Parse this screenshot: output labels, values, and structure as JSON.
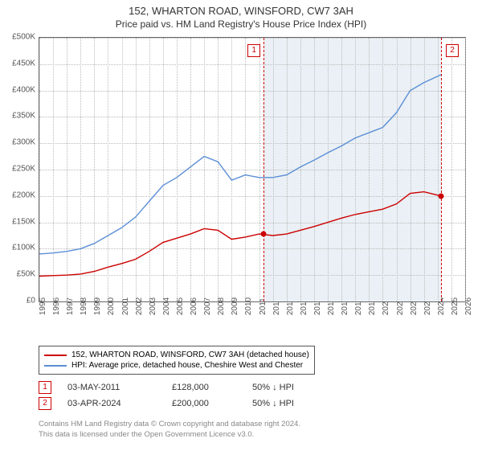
{
  "title": "152, WHARTON ROAD, WINSFORD, CW7 3AH",
  "subtitle": "Price paid vs. HM Land Registry's House Price Index (HPI)",
  "chart": {
    "type": "line",
    "background_color": "#ffffff",
    "grid_color": "#bbbbbb",
    "border_color": "#666666",
    "shade_color": "#eaf0f5",
    "xlim": [
      1995,
      2026
    ],
    "ylim": [
      0,
      500000
    ],
    "ytick_step": 50000,
    "y_ticks": [
      "£0",
      "£50K",
      "£100K",
      "£150K",
      "£200K",
      "£250K",
      "£300K",
      "£350K",
      "£400K",
      "£450K",
      "£500K"
    ],
    "x_ticks": [
      1995,
      1996,
      1997,
      1998,
      1999,
      2000,
      2001,
      2002,
      2003,
      2004,
      2005,
      2006,
      2007,
      2008,
      2009,
      2010,
      2011,
      2012,
      2013,
      2014,
      2015,
      2016,
      2017,
      2018,
      2019,
      2020,
      2021,
      2022,
      2023,
      2024,
      2025,
      2026
    ],
    "shade_start": 2011.33,
    "shade_end": 2024.25,
    "label_fontsize": 10,
    "title_fontsize": 13,
    "line_width": 1.4,
    "series": {
      "property": {
        "color": "#cc0000",
        "data": [
          [
            1995,
            48000
          ],
          [
            1996,
            49000
          ],
          [
            1997,
            50000
          ],
          [
            1998,
            52000
          ],
          [
            1999,
            57000
          ],
          [
            2000,
            65000
          ],
          [
            2001,
            72000
          ],
          [
            2002,
            80000
          ],
          [
            2003,
            95000
          ],
          [
            2004,
            112000
          ],
          [
            2005,
            120000
          ],
          [
            2006,
            128000
          ],
          [
            2007,
            138000
          ],
          [
            2008,
            135000
          ],
          [
            2009,
            118000
          ],
          [
            2010,
            122000
          ],
          [
            2011,
            128000
          ],
          [
            2012,
            125000
          ],
          [
            2013,
            128000
          ],
          [
            2014,
            135000
          ],
          [
            2015,
            142000
          ],
          [
            2016,
            150000
          ],
          [
            2017,
            158000
          ],
          [
            2018,
            165000
          ],
          [
            2019,
            170000
          ],
          [
            2020,
            175000
          ],
          [
            2021,
            185000
          ],
          [
            2022,
            205000
          ],
          [
            2023,
            208000
          ],
          [
            2024.25,
            200000
          ]
        ]
      },
      "hpi": {
        "color": "#5b8fd6",
        "data": [
          [
            1995,
            90000
          ],
          [
            1996,
            92000
          ],
          [
            1997,
            95000
          ],
          [
            1998,
            100000
          ],
          [
            1999,
            110000
          ],
          [
            2000,
            125000
          ],
          [
            2001,
            140000
          ],
          [
            2002,
            160000
          ],
          [
            2003,
            190000
          ],
          [
            2004,
            220000
          ],
          [
            2005,
            235000
          ],
          [
            2006,
            255000
          ],
          [
            2007,
            275000
          ],
          [
            2008,
            265000
          ],
          [
            2009,
            230000
          ],
          [
            2010,
            240000
          ],
          [
            2011,
            235000
          ],
          [
            2012,
            235000
          ],
          [
            2013,
            240000
          ],
          [
            2014,
            255000
          ],
          [
            2015,
            268000
          ],
          [
            2016,
            282000
          ],
          [
            2017,
            295000
          ],
          [
            2018,
            310000
          ],
          [
            2019,
            320000
          ],
          [
            2020,
            330000
          ],
          [
            2021,
            358000
          ],
          [
            2022,
            400000
          ],
          [
            2023,
            415000
          ],
          [
            2024.25,
            430000
          ]
        ]
      }
    },
    "markers": [
      {
        "n": "1",
        "x": 2011.33,
        "y": 128000,
        "color": "#cc0000"
      },
      {
        "n": "2",
        "x": 2024.25,
        "y": 200000,
        "color": "#cc0000"
      }
    ]
  },
  "legend": {
    "items": [
      {
        "color": "#cc0000",
        "label": "152, WHARTON ROAD, WINSFORD, CW7 3AH (detached house)"
      },
      {
        "color": "#5b8fd6",
        "label": "HPI: Average price, detached house, Cheshire West and Chester"
      }
    ]
  },
  "sales": [
    {
      "n": "1",
      "color": "#cc0000",
      "date": "03-MAY-2011",
      "price": "£128,000",
      "diff": "50% ↓ HPI"
    },
    {
      "n": "2",
      "color": "#cc0000",
      "date": "03-APR-2024",
      "price": "£200,000",
      "diff": "50% ↓ HPI"
    }
  ],
  "footer": {
    "line1": "Contains HM Land Registry data © Crown copyright and database right 2024.",
    "line2": "This data is licensed under the Open Government Licence v3.0."
  }
}
